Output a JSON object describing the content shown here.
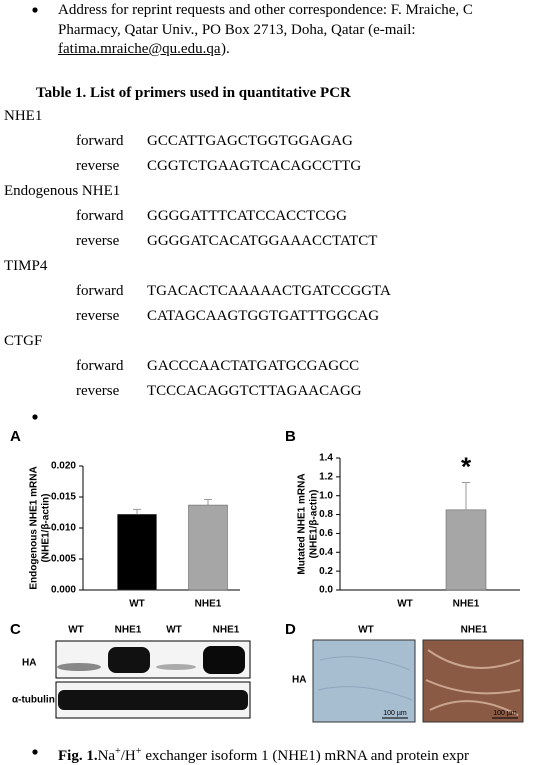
{
  "document": {
    "address": [
      "Address for reprint requests and other correspondence: F. Mraiche, C",
      "Pharmacy, Qatar Univ., PO Box 2713, Doha, Qatar (e-mail:"
    ],
    "email": "fatima.mraiche@qu.edu.qa",
    "email_close": ").",
    "table": {
      "title": "Table 1. List of primers used in quantitative PCR",
      "genes": [
        {
          "name": "NHE1",
          "primers": [
            [
              "forward",
              "GCCATTGAGCTGGTGGAGAG"
            ],
            [
              "reverse",
              "CGGTCTGAAGTCACAGCCTTG"
            ]
          ]
        },
        {
          "name": "Endogenous NHE1",
          "primers": [
            [
              "forward",
              "GGGGATTTCATCCACCTCGG"
            ],
            [
              "reverse",
              "GGGGATCACATGGAAACCTATCT"
            ]
          ]
        },
        {
          "name": "TIMP4",
          "primers": [
            [
              "forward",
              "TGACACTCAAAAACTGATCCGGTA"
            ],
            [
              "reverse",
              "CATAGCAAGTGGTGATTTGGCAG"
            ]
          ]
        },
        {
          "name": "CTGF",
          "primers": [
            [
              "forward",
              "GACCCAACTATGATGCGAGCC"
            ],
            [
              "reverse",
              "TCCCACAGGTCTTAGAACAGG"
            ]
          ]
        }
      ]
    },
    "panels": [
      "A",
      "B",
      "C",
      "D"
    ],
    "blot": {
      "lanes": [
        "WT",
        "NHE1",
        "WT",
        "NHE1"
      ],
      "rows": [
        "HA",
        "α-tubulin"
      ]
    },
    "histology": {
      "labels": [
        "WT",
        "NHE1"
      ],
      "row_label": "HA",
      "scale": "100 µm"
    },
    "caption": {
      "label": "Fig. 1.",
      "parts": [
        "Na",
        "+",
        "/H",
        "+",
        "exchanger isoform 1 (NHE1) mRNA and protein expr"
      ]
    }
  },
  "chart_data": [
    {
      "type": "bar",
      "y_label": [
        "Endogenous NHE1 mRNA",
        "(NHE1/β-actin)"
      ],
      "categories": [
        "WT",
        "NHE1"
      ],
      "values": [
        0.0122,
        0.0137
      ],
      "errors": [
        0.0008,
        0.0009
      ],
      "colors": [
        "#000000",
        "#a6a6a6"
      ],
      "ylim": [
        0,
        0.02
      ],
      "yticks": [
        {
          "value": 0,
          "label": "0.000"
        },
        {
          "value": 0.005,
          "label": "0.005"
        },
        {
          "value": 0.01,
          "label": "0.010"
        },
        {
          "value": 0.015,
          "label": "0.015"
        },
        {
          "value": 0.02,
          "label": "0.020"
        }
      ]
    },
    {
      "type": "bar",
      "y_label": [
        "Mutated NHE1 mRNA",
        "(NHE1/β-actin)"
      ],
      "categories": [
        "WT",
        "NHE1"
      ],
      "values": [
        0,
        0.85
      ],
      "errors": [
        null,
        0.29
      ],
      "colors": [
        "#000000",
        "#a6a6a6"
      ],
      "annotation": "*",
      "ylim": [
        0,
        1.4
      ],
      "yticks": [
        {
          "value": 0,
          "label": "0.0"
        },
        {
          "value": 0.2,
          "label": "0.2"
        },
        {
          "value": 0.4,
          "label": "0.4"
        },
        {
          "value": 0.6,
          "label": "0.6"
        },
        {
          "value": 0.8,
          "label": "0.8"
        },
        {
          "value": 1,
          "label": "1.0"
        },
        {
          "value": 1.2,
          "label": "1.2"
        },
        {
          "value": 1.4,
          "label": "1.4"
        }
      ]
    }
  ]
}
